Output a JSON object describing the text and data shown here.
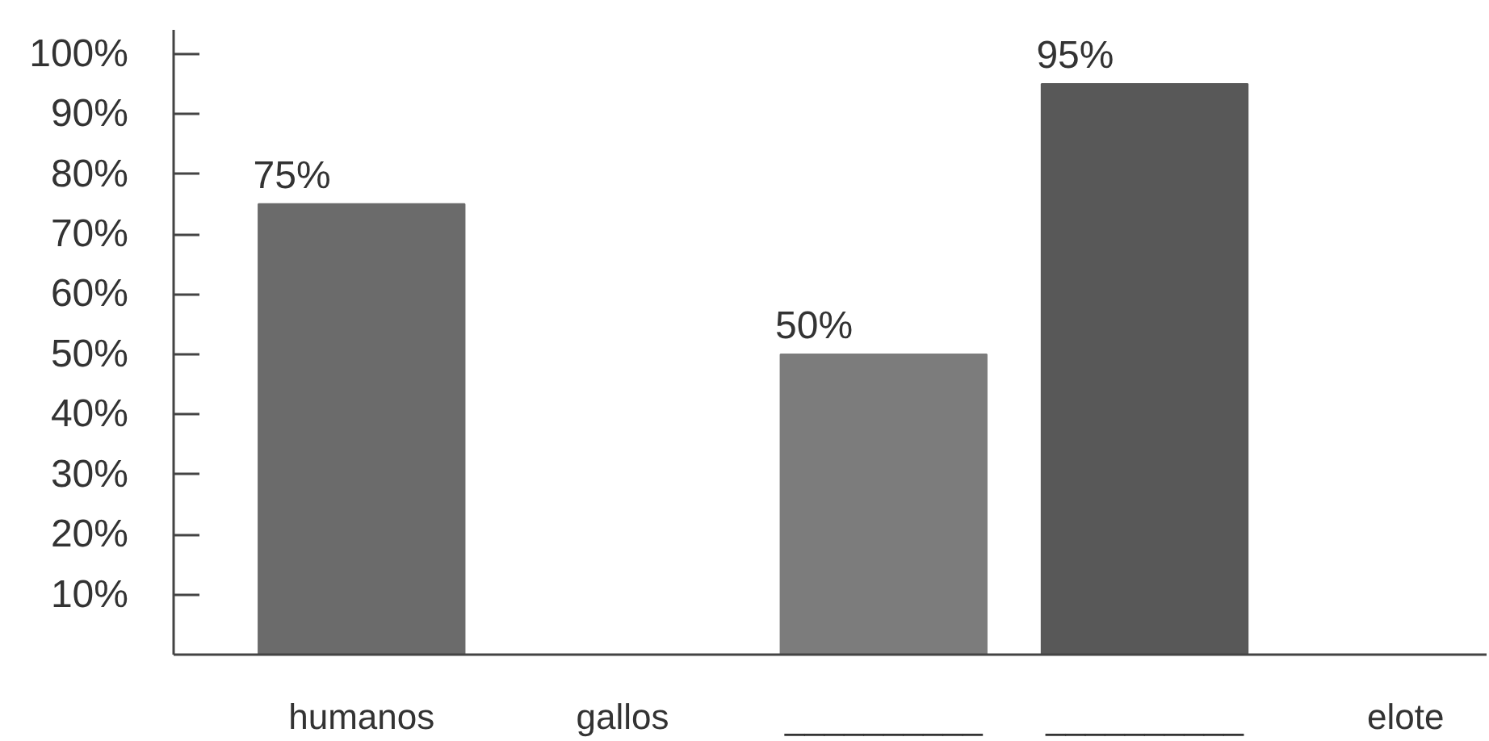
{
  "chart_data": {
    "type": "bar",
    "categories": [
      "humanos",
      "gallos",
      "__________",
      "__________",
      "elote"
    ],
    "values": [
      75,
      null,
      50,
      95,
      null
    ],
    "colors": [
      "#6b6b6b",
      null,
      "#7c7c7c",
      "#585858",
      null
    ],
    "value_labels": [
      "75%",
      null,
      "50%",
      "95%",
      null
    ],
    "ylim": [
      0,
      104
    ],
    "yticks": [
      {
        "value": 10,
        "label": "10%"
      },
      {
        "value": 20,
        "label": "20%"
      },
      {
        "value": 30,
        "label": "30%"
      },
      {
        "value": 40,
        "label": "40%"
      },
      {
        "value": 50,
        "label": "50%"
      },
      {
        "value": 60,
        "label": "60%"
      },
      {
        "value": 70,
        "label": "70%"
      },
      {
        "value": 80,
        "label": "80%"
      },
      {
        "value": 90,
        "label": "90%"
      },
      {
        "value": 100,
        "label": "100%"
      }
    ],
    "grid": false
  }
}
